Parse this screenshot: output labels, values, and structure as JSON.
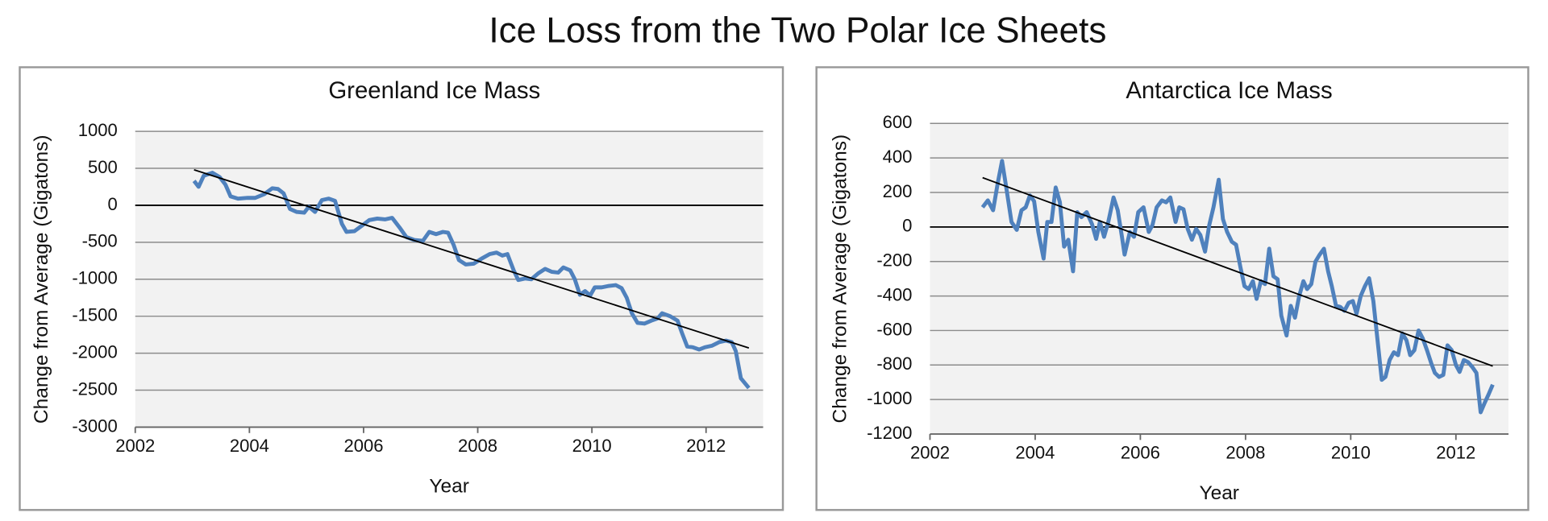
{
  "title": "Ice Loss from the Two Polar Ice Sheets",
  "chart_data": [
    {
      "type": "line",
      "title": "Greenland Ice Mass",
      "xlabel": "Year",
      "ylabel": "Change from Average (Gigatons)",
      "color": "#4f81bd",
      "trend_color": "#000000",
      "grid": true,
      "xlim": [
        2002,
        2013
      ],
      "xticks": [
        2002,
        2004,
        2006,
        2008,
        2010,
        2012
      ],
      "ylim": [
        -3000,
        1000
      ],
      "yticks": [
        -3000,
        -2500,
        -2000,
        -1500,
        -1000,
        -500,
        0,
        500,
        1000
      ],
      "x": [
        2003.03,
        2003.11,
        2003.2,
        2003.35,
        2003.48,
        2003.58,
        2003.67,
        2003.8,
        2003.97,
        2004.1,
        2004.26,
        2004.4,
        2004.5,
        2004.6,
        2004.71,
        2004.83,
        2004.96,
        2005.04,
        2005.15,
        2005.27,
        2005.39,
        2005.5,
        2005.62,
        2005.7,
        2005.84,
        2005.98,
        2006.1,
        2006.24,
        2006.38,
        2006.5,
        2006.63,
        2006.75,
        2006.89,
        2007.04,
        2007.15,
        2007.27,
        2007.39,
        2007.48,
        2007.58,
        2007.67,
        2007.79,
        2007.93,
        2008.07,
        2008.21,
        2008.33,
        2008.43,
        2008.52,
        2008.63,
        2008.71,
        2008.83,
        2008.94,
        2009.06,
        2009.18,
        2009.3,
        2009.41,
        2009.5,
        2009.62,
        2009.7,
        2009.79,
        2009.88,
        2009.97,
        2010.05,
        2010.17,
        2010.3,
        2010.42,
        2010.52,
        2010.61,
        2010.7,
        2010.8,
        2010.92,
        2011.04,
        2011.15,
        2011.23,
        2011.37,
        2011.5,
        2011.58,
        2011.67,
        2011.77,
        2011.88,
        2011.98,
        2012.1,
        2012.23,
        2012.35,
        2012.45,
        2012.52,
        2012.61,
        2012.75
      ],
      "values": [
        330,
        250,
        400,
        440,
        380,
        280,
        120,
        90,
        100,
        100,
        150,
        230,
        220,
        160,
        -50,
        -90,
        -100,
        -20,
        -90,
        70,
        90,
        60,
        -250,
        -360,
        -350,
        -270,
        -200,
        -180,
        -190,
        -170,
        -300,
        -430,
        -470,
        -480,
        -360,
        -390,
        -360,
        -370,
        -540,
        -740,
        -800,
        -790,
        -720,
        -660,
        -640,
        -680,
        -660,
        -880,
        -1010,
        -990,
        -1000,
        -920,
        -860,
        -900,
        -910,
        -840,
        -880,
        -1000,
        -1210,
        -1160,
        -1220,
        -1110,
        -1110,
        -1090,
        -1080,
        -1120,
        -1250,
        -1460,
        -1590,
        -1600,
        -1560,
        -1530,
        -1460,
        -1500,
        -1560,
        -1730,
        -1910,
        -1920,
        -1950,
        -1920,
        -1900,
        -1850,
        -1830,
        -1850,
        -1970,
        -2340,
        -2470
      ],
      "trend_x": [
        2003.03,
        2012.75
      ],
      "trend_values": [
        480,
        -1930
      ]
    },
    {
      "type": "line",
      "title": "Antarctica Ice Mass",
      "xlabel": "Year",
      "ylabel": "Change from Average (Gigatons)",
      "color": "#4f81bd",
      "trend_color": "#000000",
      "grid": true,
      "xlim": [
        2002,
        2013
      ],
      "xticks": [
        2002,
        2004,
        2006,
        2008,
        2010,
        2012
      ],
      "ylim": [
        -1200,
        600
      ],
      "yticks": [
        -1200,
        -1000,
        -800,
        -600,
        -400,
        -200,
        0,
        200,
        400,
        600
      ],
      "x": [
        2003.0,
        2003.1,
        2003.2,
        2003.29,
        2003.37,
        2003.45,
        2003.55,
        2003.65,
        2003.74,
        2003.82,
        2003.9,
        2003.98,
        2004.06,
        2004.16,
        2004.23,
        2004.31,
        2004.39,
        2004.47,
        2004.55,
        2004.63,
        2004.72,
        2004.8,
        2004.88,
        2004.98,
        2005.08,
        2005.16,
        2005.23,
        2005.31,
        2005.39,
        2005.49,
        2005.57,
        2005.65,
        2005.7,
        2005.8,
        2005.88,
        2005.96,
        2006.06,
        2006.16,
        2006.23,
        2006.31,
        2006.41,
        2006.49,
        2006.57,
        2006.67,
        2006.74,
        2006.82,
        2006.9,
        2006.98,
        2007.06,
        2007.14,
        2007.23,
        2007.31,
        2007.39,
        2007.49,
        2007.57,
        2007.65,
        2007.74,
        2007.82,
        2007.9,
        2007.98,
        2008.06,
        2008.14,
        2008.21,
        2008.29,
        2008.37,
        2008.45,
        2008.53,
        2008.61,
        2008.68,
        2008.78,
        2008.86,
        2008.94,
        2009.02,
        2009.1,
        2009.17,
        2009.25,
        2009.33,
        2009.41,
        2009.49,
        2009.57,
        2009.64,
        2009.72,
        2009.8,
        2009.88,
        2009.96,
        2010.04,
        2010.11,
        2010.19,
        2010.27,
        2010.35,
        2010.43,
        2010.51,
        2010.59,
        2010.66,
        2010.74,
        2010.82,
        2010.9,
        2010.98,
        2011.06,
        2011.13,
        2011.21,
        2011.29,
        2011.37,
        2011.45,
        2011.53,
        2011.6,
        2011.68,
        2011.76,
        2011.84,
        2011.92,
        2012.0,
        2012.07,
        2012.15,
        2012.23,
        2012.31,
        2012.39,
        2012.47,
        2012.55,
        2012.62,
        2012.7
      ],
      "values": [
        114,
        154,
        97,
        257,
        383,
        229,
        29,
        -17,
        97,
        114,
        183,
        149,
        -29,
        -183,
        29,
        29,
        229,
        143,
        -114,
        -74,
        -257,
        86,
        57,
        86,
        17,
        -69,
        29,
        -57,
        29,
        171,
        97,
        -57,
        -160,
        -29,
        -57,
        86,
        114,
        -29,
        11,
        114,
        154,
        143,
        171,
        29,
        114,
        103,
        -11,
        -74,
        -11,
        -46,
        -143,
        11,
        114,
        274,
        46,
        -29,
        -86,
        -103,
        -229,
        -343,
        -360,
        -314,
        -417,
        -314,
        -331,
        -126,
        -286,
        -303,
        -514,
        -629,
        -457,
        -526,
        -400,
        -314,
        -360,
        -331,
        -200,
        -160,
        -126,
        -257,
        -343,
        -457,
        -463,
        -486,
        -440,
        -429,
        -503,
        -400,
        -343,
        -297,
        -429,
        -657,
        -886,
        -869,
        -771,
        -726,
        -743,
        -617,
        -657,
        -743,
        -714,
        -600,
        -646,
        -714,
        -789,
        -846,
        -869,
        -857,
        -686,
        -714,
        -800,
        -840,
        -771,
        -783,
        -811,
        -846,
        -1074,
        -1017,
        -971,
        -914
      ],
      "trend_x": [
        2003.0,
        2012.7
      ],
      "trend_values": [
        286,
        -806
      ]
    }
  ]
}
